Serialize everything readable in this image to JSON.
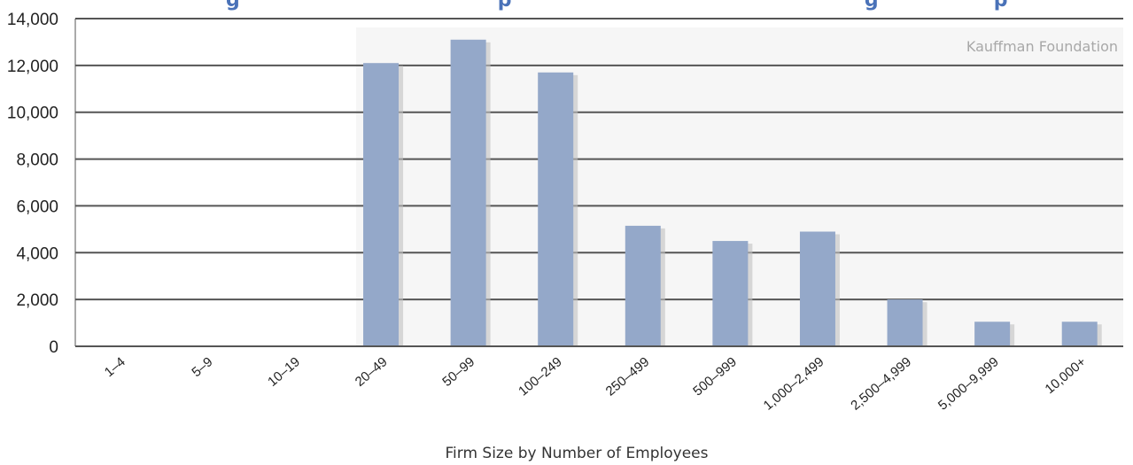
{
  "chart_data": {
    "type": "bar",
    "title_fragment": "g                                      p                                                    g                 p",
    "watermark": "Kauffman Foundation",
    "xlabel": "Firm Size by Number of Employees",
    "ylabel": "",
    "categories": [
      "1–4",
      "5–9",
      "10–19",
      "20–49",
      "50–99",
      "100–249",
      "250–499",
      "500–999",
      "1,000–2,499",
      "2,500–4,999",
      "5,000–9,999",
      "10,000+"
    ],
    "values": [
      0,
      0,
      0,
      12100,
      13100,
      11700,
      5150,
      4500,
      4900,
      2000,
      1050,
      1050
    ],
    "ylim": [
      0,
      14000
    ],
    "yticks": [
      0,
      2000,
      4000,
      6000,
      8000,
      10000,
      12000,
      14000
    ],
    "ytick_labels": [
      "0",
      "2,000",
      "4,000",
      "6,000",
      "8,000",
      "10,000",
      "12,000",
      "14,000"
    ],
    "grid": true,
    "colors": {
      "bar": "#94a8c9",
      "bar_shadow": "#c2c2c2",
      "grid": "#555555",
      "panel": "#f6f6f6",
      "title": "#4a72b8"
    }
  }
}
